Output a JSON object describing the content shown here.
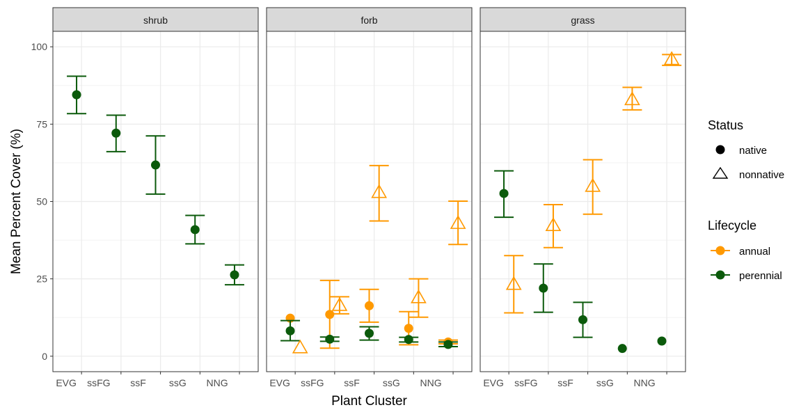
{
  "chart_data": {
    "type": "scatter",
    "facets": [
      "shrub",
      "forb",
      "grass"
    ],
    "categories": [
      "EVG",
      "ssFG",
      "ssF",
      "ssG",
      "NNG"
    ],
    "xlabel": "Plant Cluster",
    "ylabel": "Mean Percent Cover (%)",
    "ylim": [
      -5,
      105
    ],
    "yticks": [
      0,
      25,
      50,
      75,
      100
    ],
    "grid": true,
    "legend_position": "right",
    "legend": {
      "status": {
        "title": "Status",
        "items": [
          {
            "label": "native",
            "shape": "circle"
          },
          {
            "label": "nonnative",
            "shape": "triangle"
          }
        ]
      },
      "lifecycle": {
        "title": "Lifecycle",
        "items": [
          {
            "label": "annual",
            "color": "#FF9900"
          },
          {
            "label": "perennial",
            "color": "#0B5A0B"
          }
        ]
      }
    },
    "colors": {
      "annual": "#FF9900",
      "perennial": "#0B5A0B"
    },
    "points": [
      {
        "facet": "shrub",
        "cluster": "EVG",
        "status": "native",
        "lifecycle": "perennial",
        "mean": 84.5,
        "lower": 78.4,
        "upper": 90.5
      },
      {
        "facet": "shrub",
        "cluster": "ssFG",
        "status": "native",
        "lifecycle": "perennial",
        "mean": 72.1,
        "lower": 66.1,
        "upper": 77.9
      },
      {
        "facet": "shrub",
        "cluster": "ssF",
        "status": "native",
        "lifecycle": "perennial",
        "mean": 61.8,
        "lower": 52.4,
        "upper": 71.2
      },
      {
        "facet": "shrub",
        "cluster": "ssG",
        "status": "native",
        "lifecycle": "perennial",
        "mean": 40.9,
        "lower": 36.3,
        "upper": 45.5
      },
      {
        "facet": "shrub",
        "cluster": "NNG",
        "status": "native",
        "lifecycle": "perennial",
        "mean": 26.3,
        "lower": 23.1,
        "upper": 29.5
      },
      {
        "facet": "forb",
        "cluster": "EVG",
        "status": "native",
        "lifecycle": "annual",
        "mean": 12.3,
        "lower": null,
        "upper": null
      },
      {
        "facet": "forb",
        "cluster": "EVG",
        "status": "native",
        "lifecycle": "perennial",
        "mean": 8.2,
        "lower": 5.0,
        "upper": 11.5
      },
      {
        "facet": "forb",
        "cluster": "EVG",
        "status": "nonnative",
        "lifecycle": "annual",
        "mean": 2.8,
        "lower": null,
        "upper": null
      },
      {
        "facet": "forb",
        "cluster": "ssFG",
        "status": "native",
        "lifecycle": "annual",
        "mean": 13.5,
        "lower": 2.6,
        "upper": 24.5
      },
      {
        "facet": "forb",
        "cluster": "ssFG",
        "status": "nonnative",
        "lifecycle": "annual",
        "mean": 16.5,
        "lower": 13.7,
        "upper": 19.2
      },
      {
        "facet": "forb",
        "cluster": "ssFG",
        "status": "native",
        "lifecycle": "perennial",
        "mean": 5.5,
        "lower": 4.8,
        "upper": 6.2
      },
      {
        "facet": "forb",
        "cluster": "ssF",
        "status": "native",
        "lifecycle": "annual",
        "mean": 16.3,
        "lower": 11.0,
        "upper": 21.6
      },
      {
        "facet": "forb",
        "cluster": "ssF",
        "status": "nonnative",
        "lifecycle": "annual",
        "mean": 53.0,
        "lower": 43.7,
        "upper": 61.6
      },
      {
        "facet": "forb",
        "cluster": "ssF",
        "status": "native",
        "lifecycle": "perennial",
        "mean": 7.4,
        "lower": 5.2,
        "upper": 9.5
      },
      {
        "facet": "forb",
        "cluster": "ssG",
        "status": "native",
        "lifecycle": "annual",
        "mean": 9.0,
        "lower": 3.7,
        "upper": 14.4
      },
      {
        "facet": "forb",
        "cluster": "ssG",
        "status": "nonnative",
        "lifecycle": "annual",
        "mean": 19.0,
        "lower": 12.6,
        "upper": 25.0
      },
      {
        "facet": "forb",
        "cluster": "ssG",
        "status": "native",
        "lifecycle": "perennial",
        "mean": 5.4,
        "lower": 4.6,
        "upper": 6.1
      },
      {
        "facet": "forb",
        "cluster": "NNG",
        "status": "native",
        "lifecycle": "annual",
        "mean": 4.6,
        "lower": 4.0,
        "upper": 5.2
      },
      {
        "facet": "forb",
        "cluster": "NNG",
        "status": "nonnative",
        "lifecycle": "annual",
        "mean": 43.0,
        "lower": 36.1,
        "upper": 50.1
      },
      {
        "facet": "forb",
        "cluster": "NNG",
        "status": "native",
        "lifecycle": "perennial",
        "mean": 3.8,
        "lower": 3.1,
        "upper": 4.6
      },
      {
        "facet": "grass",
        "cluster": "EVG",
        "status": "native",
        "lifecycle": "perennial",
        "mean": 52.6,
        "lower": 44.9,
        "upper": 59.9
      },
      {
        "facet": "grass",
        "cluster": "EVG",
        "status": "nonnative",
        "lifecycle": "annual",
        "mean": 23.3,
        "lower": 14.0,
        "upper": 32.5
      },
      {
        "facet": "grass",
        "cluster": "ssFG",
        "status": "nonnative",
        "lifecycle": "annual",
        "mean": 42.3,
        "lower": 35.1,
        "upper": 49.0
      },
      {
        "facet": "grass",
        "cluster": "ssFG",
        "status": "native",
        "lifecycle": "perennial",
        "mean": 22.0,
        "lower": 14.2,
        "upper": 29.8
      },
      {
        "facet": "grass",
        "cluster": "ssF",
        "status": "nonnative",
        "lifecycle": "annual",
        "mean": 55.0,
        "lower": 45.9,
        "upper": 63.5
      },
      {
        "facet": "grass",
        "cluster": "ssF",
        "status": "native",
        "lifecycle": "perennial",
        "mean": 11.8,
        "lower": 6.1,
        "upper": 17.4
      },
      {
        "facet": "grass",
        "cluster": "ssG",
        "status": "nonnative",
        "lifecycle": "annual",
        "mean": 83.0,
        "lower": 79.6,
        "upper": 86.9
      },
      {
        "facet": "grass",
        "cluster": "ssG",
        "status": "native",
        "lifecycle": "perennial",
        "mean": 2.5,
        "lower": null,
        "upper": null
      },
      {
        "facet": "grass",
        "cluster": "NNG",
        "status": "nonnative",
        "lifecycle": "annual",
        "mean": 96.0,
        "lower": 94.0,
        "upper": 97.5
      },
      {
        "facet": "grass",
        "cluster": "NNG",
        "status": "native",
        "lifecycle": "perennial",
        "mean": 4.9,
        "lower": null,
        "upper": null
      }
    ]
  }
}
